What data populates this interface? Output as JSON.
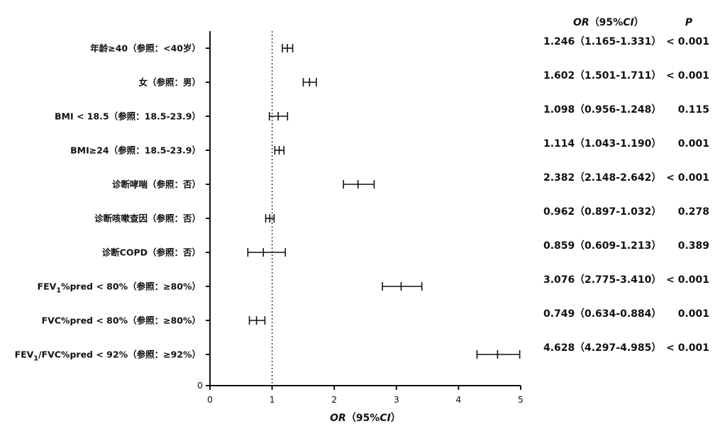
{
  "chart_data": {
    "type": "forest",
    "xlabel": {
      "em1": "OR",
      "rest": "（95%",
      "em2": "CI",
      "close": "）"
    },
    "xlim": [
      0,
      5
    ],
    "xticks": [
      "0",
      "1",
      "2",
      "3",
      "4",
      "5"
    ],
    "yzero": "0",
    "reference_line": 1,
    "header": {
      "or_em": "OR",
      "ci_open": "（95%",
      "ci_em": "CI",
      "ci_close": "）",
      "p": "P"
    },
    "rows": [
      {
        "label": "年龄≥40（参照：<40岁）",
        "or": 1.246,
        "lo": 1.165,
        "hi": 1.331,
        "or_text": "1.246",
        "ci_text": "（1.165-1.331）",
        "p_text": "< 0.001"
      },
      {
        "label": "女（参照：男）",
        "or": 1.602,
        "lo": 1.501,
        "hi": 1.711,
        "or_text": "1.602",
        "ci_text": "（1.501-1.711）",
        "p_text": "< 0.001"
      },
      {
        "label": "BMI < 18.5（参照：18.5-23.9）",
        "or": 1.098,
        "lo": 0.956,
        "hi": 1.248,
        "or_text": "1.098",
        "ci_text": "（0.956-1.248）",
        "p_text": "0.115"
      },
      {
        "label": "BMI≥24（参照：18.5-23.9）",
        "or": 1.114,
        "lo": 1.043,
        "hi": 1.19,
        "or_text": "1.114",
        "ci_text": "（1.043-1.190）",
        "p_text": "0.001"
      },
      {
        "label": "诊断哮喘（参照：否）",
        "or": 2.382,
        "lo": 2.148,
        "hi": 2.642,
        "or_text": "2.382",
        "ci_text": "（2.148-2.642）",
        "p_text": "< 0.001"
      },
      {
        "label": "诊断咳嗽查因（参照：否）",
        "or": 0.962,
        "lo": 0.897,
        "hi": 1.032,
        "or_text": "0.962",
        "ci_text": "（0.897-1.032）",
        "p_text": "0.278"
      },
      {
        "label": "诊断COPD（参照：否）",
        "or": 0.859,
        "lo": 0.609,
        "hi": 1.213,
        "or_text": "0.859",
        "ci_text": "（0.609-1.213）",
        "p_text": "0.389"
      },
      {
        "label_main": "FEV",
        "label_sub": "1",
        "label_rest": "%pred < 80%（参照：≥80%）",
        "or": 3.076,
        "lo": 2.775,
        "hi": 3.41,
        "or_text": "3.076",
        "ci_text": "（2.775-3.410）",
        "p_text": "< 0.001"
      },
      {
        "label": "FVC%pred < 80%（参照：≥80%）",
        "or": 0.749,
        "lo": 0.634,
        "hi": 0.884,
        "or_text": "0.749",
        "ci_text": "（0.634-0.884）",
        "p_text": "0.001"
      },
      {
        "label_main": "FEV",
        "label_sub": "1",
        "label_rest": "/FVC%pred < 92%（参照：≥92%）",
        "or": 4.628,
        "lo": 4.297,
        "hi": 4.985,
        "or_text": "4.628",
        "ci_text": "（4.297-4.985）",
        "p_text": "< 0.001"
      }
    ]
  }
}
